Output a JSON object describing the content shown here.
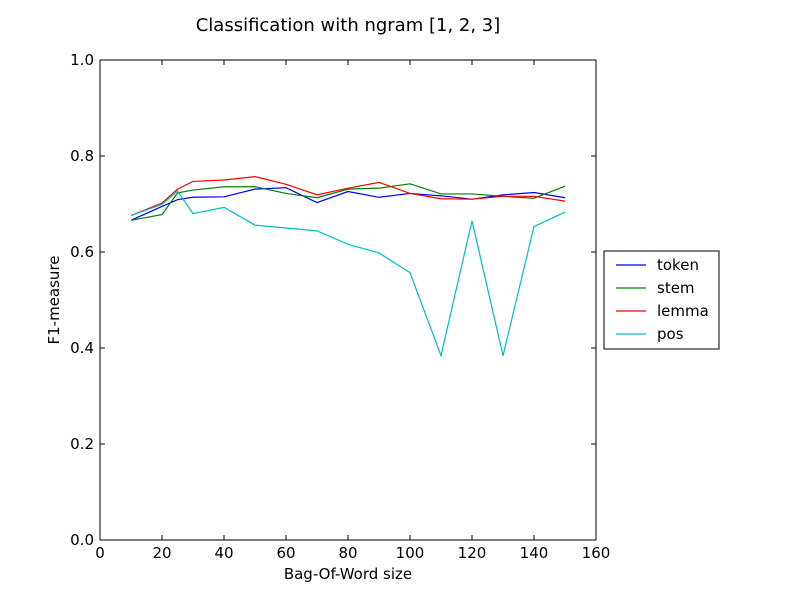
{
  "chart_data": {
    "type": "line",
    "title": "Classification with ngram [1, 2, 3]",
    "xlabel": "Bag-Of-Word size",
    "ylabel": "F1-measure",
    "xlim": [
      0,
      160
    ],
    "ylim": [
      0.0,
      1.0
    ],
    "xticks": [
      "0",
      "20",
      "40",
      "60",
      "80",
      "100",
      "120",
      "140",
      "160"
    ],
    "yticks": [
      "0.0",
      "0.2",
      "0.4",
      "0.6",
      "0.8",
      "1.0"
    ],
    "grid": false,
    "legend_position": "outside-right",
    "series": [
      {
        "name": "token",
        "color": "#0000ff",
        "x": [
          10,
          20,
          25,
          30,
          40,
          50,
          60,
          70,
          80,
          90,
          100,
          110,
          120,
          130,
          140,
          150
        ],
        "y": [
          0.666,
          0.695,
          0.709,
          0.714,
          0.715,
          0.731,
          0.734,
          0.703,
          0.726,
          0.714,
          0.722,
          0.717,
          0.71,
          0.719,
          0.724,
          0.713
        ]
      },
      {
        "name": "stem",
        "color": "#008000",
        "x": [
          10,
          20,
          25,
          30,
          40,
          50,
          60,
          70,
          80,
          90,
          100,
          110,
          120,
          130,
          140,
          150
        ],
        "y": [
          0.666,
          0.678,
          0.723,
          0.729,
          0.736,
          0.736,
          0.722,
          0.713,
          0.731,
          0.733,
          0.742,
          0.721,
          0.721,
          0.716,
          0.712,
          0.737
        ]
      },
      {
        "name": "lemma",
        "color": "#ff0000",
        "x": [
          10,
          20,
          25,
          30,
          40,
          50,
          60,
          70,
          80,
          90,
          100,
          110,
          120,
          130,
          140,
          150
        ],
        "y": [
          0.676,
          0.702,
          0.731,
          0.747,
          0.75,
          0.757,
          0.741,
          0.719,
          0.733,
          0.745,
          0.722,
          0.711,
          0.71,
          0.716,
          0.716,
          0.706
        ]
      },
      {
        "name": "pos",
        "color": "#00bfbf",
        "x": [
          10,
          20,
          25,
          30,
          40,
          50,
          60,
          70,
          80,
          90,
          100,
          110,
          120,
          130,
          140,
          150
        ],
        "y": [
          0.676,
          0.699,
          0.727,
          0.68,
          0.693,
          0.656,
          0.65,
          0.644,
          0.616,
          0.598,
          0.557,
          0.384,
          0.665,
          0.384,
          0.653,
          0.683
        ]
      }
    ]
  }
}
